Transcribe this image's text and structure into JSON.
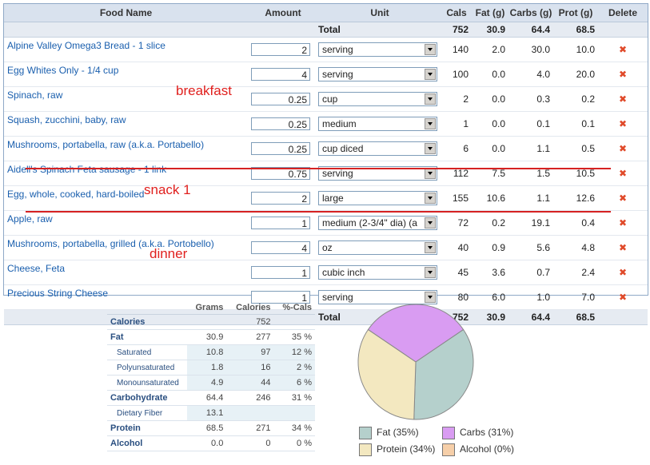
{
  "food_table": {
    "headers": {
      "name": "Food Name",
      "amount": "Amount",
      "unit": "Unit",
      "cals": "Cals",
      "fat": "Fat (g)",
      "carbs": "Carbs (g)",
      "prot": "Prot (g)",
      "delete": "Delete"
    },
    "total": {
      "label": "Total",
      "cals": "752",
      "fat": "30.9",
      "carbs": "64.4",
      "prot": "68.5"
    },
    "rows": [
      {
        "name": "Alpine Valley Omega3 Bread - 1 slice",
        "amount": "2",
        "unit": "serving",
        "cals": "140",
        "fat": "2.0",
        "carbs": "30.0",
        "prot": "10.0"
      },
      {
        "name": "Egg Whites Only - 1/4 cup",
        "amount": "4",
        "unit": "serving",
        "cals": "100",
        "fat": "0.0",
        "carbs": "4.0",
        "prot": "20.0"
      },
      {
        "name": "Spinach, raw",
        "amount": "0.25",
        "unit": "cup",
        "cals": "2",
        "fat": "0.0",
        "carbs": "0.3",
        "prot": "0.2"
      },
      {
        "name": "Squash, zucchini, baby, raw",
        "amount": "0.25",
        "unit": "medium",
        "cals": "1",
        "fat": "0.0",
        "carbs": "0.1",
        "prot": "0.1"
      },
      {
        "name": "Mushrooms, portabella, raw (a.k.a. Portabello)",
        "amount": "0.25",
        "unit": "cup diced",
        "cals": "6",
        "fat": "0.0",
        "carbs": "1.1",
        "prot": "0.5"
      },
      {
        "name": "Aidell's Spinach Feta sausage - 1 link",
        "amount": "0.75",
        "unit": "serving",
        "cals": "112",
        "fat": "7.5",
        "carbs": "1.5",
        "prot": "10.5"
      },
      {
        "name": "Egg, whole, cooked, hard-boiled",
        "amount": "2",
        "unit": "large",
        "cals": "155",
        "fat": "10.6",
        "carbs": "1.1",
        "prot": "12.6"
      },
      {
        "name": "Apple, raw",
        "amount": "1",
        "unit": "medium (2-3/4\" dia) (a",
        "cals": "72",
        "fat": "0.2",
        "carbs": "19.1",
        "prot": "0.4"
      },
      {
        "name": "Mushrooms, portabella, grilled (a.k.a. Portobello)",
        "amount": "4",
        "unit": "oz",
        "cals": "40",
        "fat": "0.9",
        "carbs": "5.6",
        "prot": "4.8"
      },
      {
        "name": "Cheese, Feta",
        "amount": "1",
        "unit": "cubic inch",
        "cals": "45",
        "fat": "3.6",
        "carbs": "0.7",
        "prot": "2.4"
      },
      {
        "name": "Precious String Cheese",
        "amount": "1",
        "unit": "serving",
        "cals": "80",
        "fat": "6.0",
        "carbs": "1.0",
        "prot": "7.0"
      }
    ],
    "delete_icon": "close-x-icon"
  },
  "annotations": {
    "breakfast": "breakfast",
    "snack": "snack 1",
    "dinner": "dinner"
  },
  "nutrition": {
    "headers": {
      "grams": "Grams",
      "calories": "Calories",
      "pct": "%-Cals"
    },
    "rows": [
      {
        "label": "Calories",
        "grams": "",
        "calories": "752",
        "pct": ""
      },
      {
        "label": "Fat",
        "grams": "30.9",
        "calories": "277",
        "pct": "35 %"
      },
      {
        "label": "Saturated",
        "grams": "10.8",
        "calories": "97",
        "pct": "12 %"
      },
      {
        "label": "Polyunsaturated",
        "grams": "1.8",
        "calories": "16",
        "pct": "2 %"
      },
      {
        "label": "Monounsaturated",
        "grams": "4.9",
        "calories": "44",
        "pct": "6 %"
      },
      {
        "label": "Carbohydrate",
        "grams": "64.4",
        "calories": "246",
        "pct": "31 %"
      },
      {
        "label": "Dietary Fiber",
        "grams": "13.1",
        "calories": "",
        "pct": ""
      },
      {
        "label": "Protein",
        "grams": "68.5",
        "calories": "271",
        "pct": "34 %"
      },
      {
        "label": "Alcohol",
        "grams": "0.0",
        "calories": "0",
        "pct": "0 %"
      }
    ]
  },
  "pie": {
    "slices": [
      {
        "label": "Fat (35%)",
        "value": 35,
        "color": "#b5d0cc"
      },
      {
        "label": "Carbs (31%)",
        "value": 31,
        "color": "#d99cf2"
      },
      {
        "label": "Protein (34%)",
        "value": 34,
        "color": "#f3e8c0"
      },
      {
        "label": "Alcohol (0%)",
        "value": 0,
        "color": "#f6cfa9"
      }
    ]
  }
}
